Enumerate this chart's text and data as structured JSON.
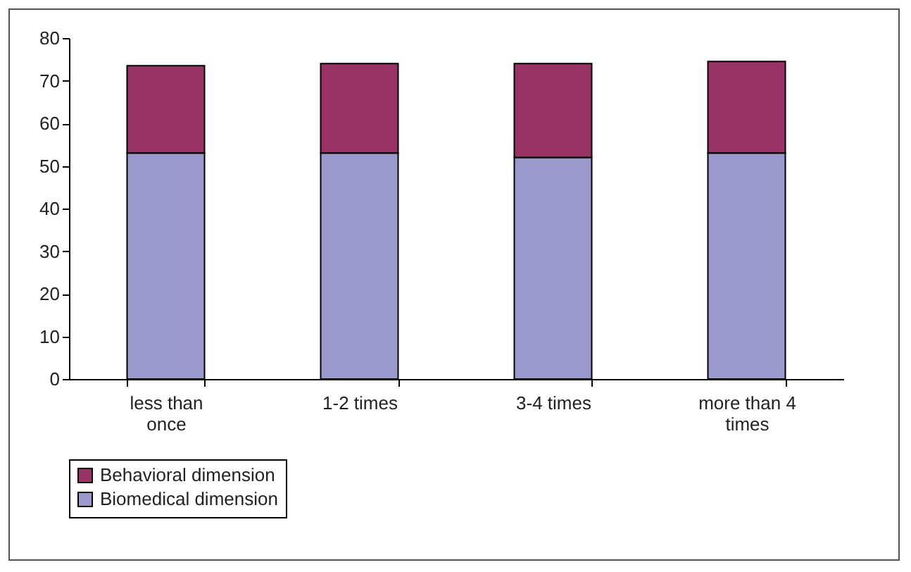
{
  "chart_data": {
    "type": "bar",
    "stacked": true,
    "categories": [
      "less than once",
      "1-2 times",
      "3-4 times",
      "more than 4 times"
    ],
    "series": [
      {
        "name": "Biomedical dimension",
        "color": "#9999cc",
        "values": [
          53,
          53,
          52,
          53
        ]
      },
      {
        "name": "Behavioral dimension",
        "color": "#993366",
        "values": [
          20.5,
          21,
          22,
          21.5
        ]
      }
    ],
    "ylim": [
      0,
      80
    ],
    "yticks": [
      0,
      10,
      20,
      30,
      40,
      50,
      60,
      70,
      80
    ],
    "grid": false,
    "legend": "bottom"
  }
}
